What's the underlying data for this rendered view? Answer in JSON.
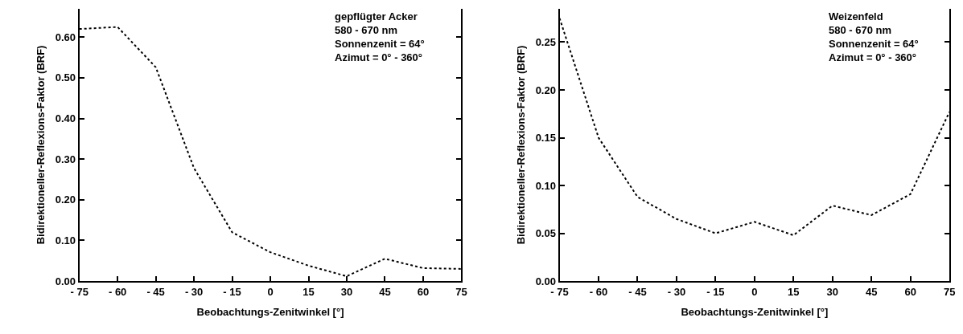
{
  "chart_data": [
    {
      "type": "line",
      "xlabel": "Beobachtungs-Zenitwinkel [°]",
      "ylabel": "Bidirektioneller-Reflexions-Faktor (BRF)",
      "annotations": [
        "gepflügter Acker",
        "580 - 670 nm",
        "Sonnenzenit = 64°",
        "Azimut = 0° - 360°"
      ],
      "x": [
        -75,
        -60,
        -45,
        -30,
        -15,
        0,
        15,
        30,
        45,
        60,
        75
      ],
      "series": [
        {
          "color": "#000000",
          "values": [
            0.62,
            0.625,
            0.526,
            0.278,
            0.12,
            0.071,
            0.038,
            0.012,
            0.055,
            0.032,
            0.03
          ]
        }
      ],
      "xlim": [
        -75,
        75
      ],
      "xticks": [
        {
          "value": -75,
          "label": "- 75"
        },
        {
          "value": -60,
          "label": "- 60"
        },
        {
          "value": -45,
          "label": "- 45"
        },
        {
          "value": -30,
          "label": "- 30"
        },
        {
          "value": -15,
          "label": "- 15"
        },
        0,
        15,
        30,
        45,
        60,
        75
      ],
      "ylim": [
        0,
        0.67
      ],
      "yticks": [
        {
          "value": 0,
          "label": "0.00"
        },
        {
          "value": 0.1,
          "label": "0.10"
        },
        {
          "value": 0.2,
          "label": "0.20"
        },
        {
          "value": 0.3,
          "label": "0.30"
        },
        {
          "value": 0.4,
          "label": "0.40"
        },
        {
          "value": 0.5,
          "label": "0.50"
        },
        {
          "value": 0.6,
          "label": "0.60"
        }
      ],
      "line_style": "dotted"
    },
    {
      "type": "line",
      "xlabel": "Beobachtungs-Zenitwinkel [°]",
      "ylabel": "Bidirektioneller-Reflexions-Faktor (BRF)",
      "annotations": [
        "Weizenfeld",
        "580 - 670 nm",
        "Sonnenzenit = 64°",
        "Azimut = 0° - 360°"
      ],
      "x": [
        -75,
        -60,
        -45,
        -30,
        -15,
        0,
        15,
        30,
        45,
        60,
        75
      ],
      "series": [
        {
          "color": "#000000",
          "values": [
            0.275,
            0.15,
            0.088,
            0.065,
            0.05,
            0.062,
            0.048,
            0.079,
            0.069,
            0.091,
            0.177
          ]
        }
      ],
      "xlim": [
        -75,
        75
      ],
      "xticks": [
        {
          "value": -75,
          "label": "- 75"
        },
        {
          "value": -60,
          "label": "- 60"
        },
        {
          "value": -45,
          "label": "- 45"
        },
        {
          "value": -30,
          "label": "- 30"
        },
        {
          "value": -15,
          "label": "- 15"
        },
        0,
        15,
        30,
        45,
        60,
        75
      ],
      "ylim": [
        0,
        0.285
      ],
      "yticks": [
        {
          "value": 0,
          "label": "0.00"
        },
        0.05,
        {
          "value": 0.1,
          "label": "0.10"
        },
        0.15,
        {
          "value": 0.2,
          "label": "0.20"
        },
        0.25
      ],
      "line_style": "dotted"
    }
  ]
}
